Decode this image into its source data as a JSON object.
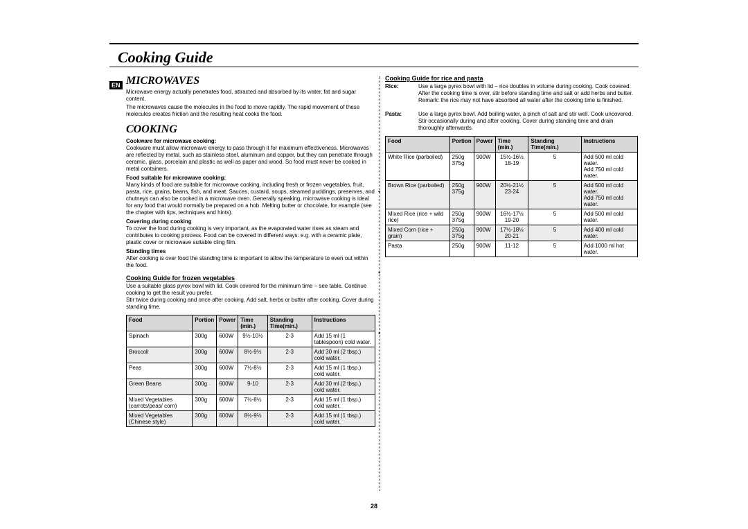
{
  "page_title": "Cooking Guide",
  "lang_badge": "EN",
  "page_number": "28",
  "colors": {
    "bg": "#ffffff",
    "text": "#000000",
    "header_bg": "#d8d8d8",
    "stripe_bg": "#ececec"
  },
  "left": {
    "h1": "MICROWAVES",
    "p1": "Microwave energy actually penetrates food, attracted and absorbed by its water, fat and sugar content.",
    "p2": "The microwaves cause the molecules in the food to move rapidly. The rapid movement of these molecules creates friction and the resulting heat cooks the food.",
    "h2": "COOKING",
    "sub1": "Cookware for microwave cooking:",
    "p3": "Cookware must allow microwave energy to pass through it for maximum effectiveness. Microwaves are reflected by metal, such as stainless steel, aluminum and copper, but they can penetrate through ceramic, glass, porcelain and plastic as well as paper and wood. So food must never be cooked in metal containers.",
    "sub2": "Food suitable for microwave cooking:",
    "p4": "Many kinds of food are suitable for microwave cooking, including fresh or frozen vegetables, fruit, pasta, rice, grains, beans, fish, and meat. Sauces, custard, soups, steamed puddings, preserves, and chutneys can also be cooked in a microwave oven. Generally speaking, microwave cooking is ideal for any food that would normally be prepared on a hob. Melting butter or chocolate, for example (see the chapter with tips, techniques and hints).",
    "sub3": "Covering during cooking",
    "p5": "To cover the food during cooking is very important, as the evaporated water rises as steam and contributes to cooking process. Food can be covered in different ways: e.g. with a ceramic plate, plastic cover or microwave suitable cling film.",
    "sub4": "Standing times",
    "p6": "After cooking is over food the standing time is important to allow the temperature to even out within the food.",
    "guide_heading": "Cooking Guide for frozen vegetables",
    "guide_text": "Use a suitable glass pyrex bowl with lid. Cook covered for the minimum time – see table. Continue cooking to get the result you prefer.\nStir twice during cooking and once after cooking. Add salt, herbs or butter after cooking. Cover during standing time.",
    "table_headers": [
      "Food",
      "Portion",
      "Power",
      "Time (min.)",
      "Standing Time(min.)",
      "Instructions"
    ],
    "rows": [
      {
        "food": "Spinach",
        "portion": "300g",
        "power": "600W",
        "time": "9½-10½",
        "stand": "2-3",
        "instr": "Add 15 ml (1 tablespoon) cold water."
      },
      {
        "food": "Broccoli",
        "portion": "300g",
        "power": "600W",
        "time": "8½-9½",
        "stand": "2-3",
        "instr": "Add 30 ml (2 tbsp.) cold water."
      },
      {
        "food": "Peas",
        "portion": "300g",
        "power": "600W",
        "time": "7½-8½",
        "stand": "2-3",
        "instr": "Add 15 ml (1 tbsp.) cold water."
      },
      {
        "food": "Green Beans",
        "portion": "300g",
        "power": "600W",
        "time": "9-10",
        "stand": "2-3",
        "instr": "Add 30 ml (2 tbsp.) cold water."
      },
      {
        "food": "Mixed Vegetables (carrots/peas/ corn)",
        "portion": "300g",
        "power": "600W",
        "time": "7½-8½",
        "stand": "2-3",
        "instr": "Add 15 ml (1 tbsp.) cold water."
      },
      {
        "food": "Mixed Vegetables (Chinese style)",
        "portion": "300g",
        "power": "600W",
        "time": "8½-9½",
        "stand": "2-3",
        "instr": "Add 15 ml (1 tbsp.) cold water."
      }
    ]
  },
  "right": {
    "guide_heading": "Cooking Guide for rice and pasta",
    "rice_label": "Rice:",
    "rice_text": "Use a large pyrex bowl with lid – rice doubles in volume during cooking. Cook covered.\nAfter the cooking time is over, stir before standing time and salt or add herbs and butter.\nRemark: the rice may not have absorbed all water after the cooking time is finished.",
    "pasta_label": "Pasta:",
    "pasta_text": "Use a large pyrex bowl. Add boiling water, a pinch of salt and stir well. Cook uncovered.\nStir occasionally during and after cooking. Cover during standing time and drain thoroughly afterwards.",
    "table_headers": [
      "Food",
      "Portion",
      "Power",
      "Time (min.)",
      "Standing Time(min.)",
      "Instructions"
    ],
    "rows": [
      {
        "food": "White Rice (parboiled)",
        "portion": "250g\n375g",
        "power": "900W",
        "time": "15½-16½\n18-19",
        "stand": "5",
        "instr": "Add 500 ml cold water.\nAdd 750 ml cold water."
      },
      {
        "food": "Brown Rice (parboiled)",
        "portion": "250g\n375g",
        "power": "900W",
        "time": "20½-21½\n23-24",
        "stand": "5",
        "instr": "Add 500 ml cold water.\nAdd 750 ml cold water."
      },
      {
        "food": "Mixed Rice (rice + wild rice)",
        "portion": "250g\n375g",
        "power": "900W",
        "time": "16½-17½\n19-20",
        "stand": "5",
        "instr": "Add 500 ml cold water."
      },
      {
        "food": "Mixed Corn (rice + grain)",
        "portion": "250g\n375g",
        "power": "900W",
        "time": "17½-18½\n20-21",
        "stand": "5",
        "instr": "Add 400 ml cold water."
      },
      {
        "food": "Pasta",
        "portion": "250g",
        "power": "900W",
        "time": "11-12",
        "stand": "5",
        "instr": "Add 1000 ml hot water."
      }
    ]
  }
}
